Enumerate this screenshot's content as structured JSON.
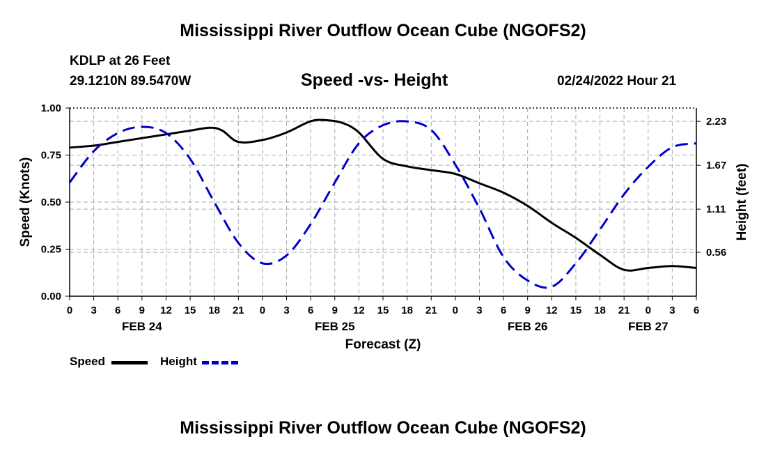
{
  "header": {
    "title": "Mississippi River Outflow Ocean Cube (NGOFS2)",
    "station": "KDLP at 26 Feet",
    "coords": "29.1210N  89.5470W",
    "subtitle": "Speed -vs- Height",
    "datetime": "02/24/2022 Hour 21"
  },
  "footer": {
    "title": "Mississippi River Outflow Ocean Cube (NGOFS2)"
  },
  "colors": {
    "speed": "#000000",
    "height": "#0000cc",
    "grid": "#aaaaaa"
  },
  "chart_data": {
    "type": "line",
    "title": "Speed -vs- Height",
    "xlabel": "Forecast (Z)",
    "ylabel_left": "Speed (Knots)",
    "ylabel_right": "Height (feet)",
    "x_unit": "hours since FEB 24 00Z",
    "xlim": [
      0,
      78
    ],
    "ylim_left": [
      0,
      1
    ],
    "ylim_right": [
      0,
      2.4
    ],
    "x_ticks": [
      0,
      3,
      6,
      9,
      12,
      15,
      18,
      21,
      24,
      27,
      30,
      33,
      36,
      39,
      42,
      45,
      48,
      51,
      54,
      57,
      60,
      63,
      66,
      69,
      72,
      75,
      78
    ],
    "x_tick_labels": [
      "0",
      "3",
      "6",
      "9",
      "12",
      "15",
      "18",
      "21",
      "0",
      "3",
      "6",
      "9",
      "12",
      "15",
      "18",
      "21",
      "0",
      "3",
      "6",
      "9",
      "12",
      "15",
      "18",
      "21",
      "0",
      "3",
      "6"
    ],
    "date_labels": [
      {
        "x": 9,
        "label": "FEB 24"
      },
      {
        "x": 33,
        "label": "FEB 25"
      },
      {
        "x": 57,
        "label": "FEB 26"
      },
      {
        "x": 72,
        "label": "FEB 27"
      }
    ],
    "left_ticks": [
      {
        "value": 0,
        "label": "0.00"
      },
      {
        "value": 0.25,
        "label": "0.25"
      },
      {
        "value": 0.5,
        "label": "0.50"
      },
      {
        "value": 0.75,
        "label": "0.75"
      },
      {
        "value": 1.0,
        "label": "1.00"
      }
    ],
    "right_ticks": [
      {
        "value": 0.56,
        "label": "0.56"
      },
      {
        "value": 1.11,
        "label": "1.11"
      },
      {
        "value": 1.67,
        "label": "1.67"
      },
      {
        "value": 2.23,
        "label": "2.23"
      }
    ],
    "series": [
      {
        "name": "Speed",
        "axis": "left",
        "style": "solid",
        "x": [
          0,
          3,
          6,
          9,
          12,
          15,
          17.5,
          19,
          21,
          24,
          27,
          30,
          32,
          34,
          36,
          39,
          42,
          45,
          48,
          51,
          54,
          57,
          60,
          63,
          66,
          69,
          72,
          75,
          78
        ],
        "values": [
          0.79,
          0.8,
          0.82,
          0.84,
          0.86,
          0.88,
          0.895,
          0.88,
          0.82,
          0.83,
          0.87,
          0.93,
          0.935,
          0.92,
          0.87,
          0.73,
          0.69,
          0.67,
          0.65,
          0.6,
          0.55,
          0.48,
          0.39,
          0.31,
          0.22,
          0.14,
          0.15,
          0.16,
          0.15
        ]
      },
      {
        "name": "Height",
        "axis": "right",
        "style": "dashed",
        "x": [
          0,
          3,
          6,
          9,
          12,
          15,
          18,
          21,
          24,
          27,
          30,
          33,
          36,
          39,
          42,
          45,
          48,
          51,
          54,
          57,
          60,
          63,
          66,
          69,
          72,
          75,
          78
        ],
        "values": [
          1.45,
          1.85,
          2.08,
          2.16,
          2.08,
          1.75,
          1.2,
          0.68,
          0.42,
          0.52,
          0.92,
          1.45,
          1.95,
          2.18,
          2.23,
          2.12,
          1.68,
          1.12,
          0.5,
          0.2,
          0.12,
          0.42,
          0.85,
          1.3,
          1.65,
          1.9,
          1.95
        ]
      }
    ],
    "legend": {
      "position": "bottom-left",
      "entries": [
        "Speed",
        "Height"
      ]
    }
  }
}
